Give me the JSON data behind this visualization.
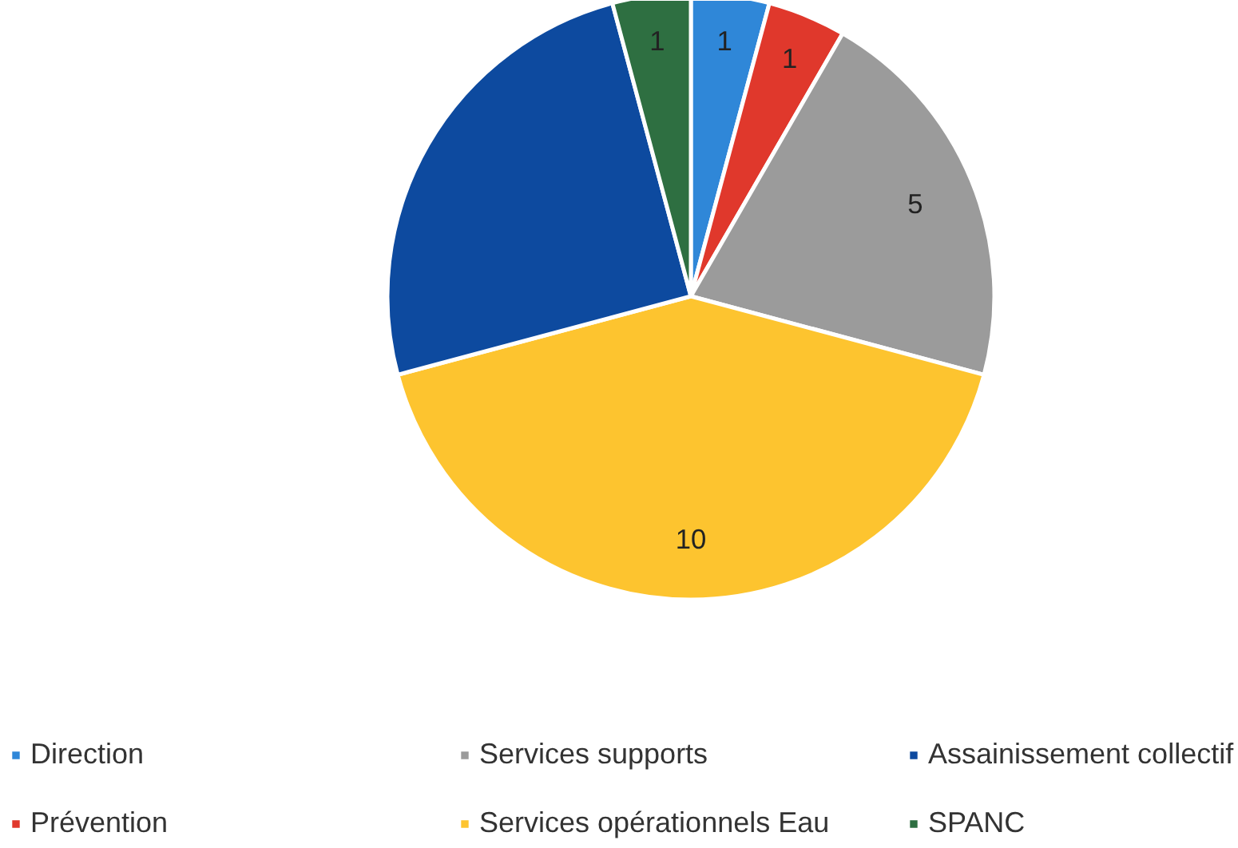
{
  "chart_data": {
    "type": "pie",
    "categories": [
      "Direction",
      "Prévention",
      "Services supports",
      "Services opérationnels Eau",
      "Assainissement collectif",
      "SPANC"
    ],
    "values": [
      1,
      1,
      5,
      10,
      6,
      1
    ],
    "colors": [
      "#2f87d8",
      "#e0382c",
      "#9b9b9b",
      "#fdc42f",
      "#0d4a9f",
      "#2e6f41"
    ],
    "value_labels": [
      "1",
      "1",
      "5",
      "10",
      null,
      "1"
    ],
    "legend": "bottom"
  }
}
